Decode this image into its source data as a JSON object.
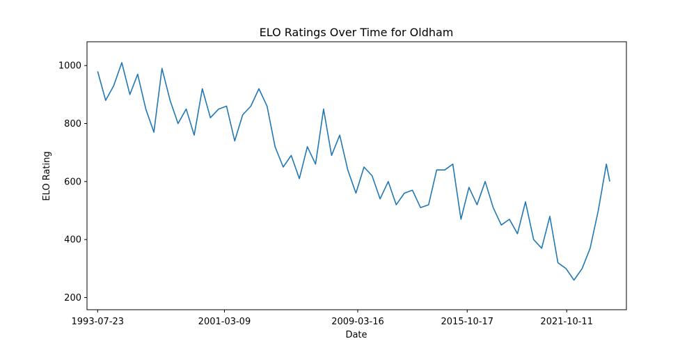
{
  "chart_data": {
    "type": "line",
    "title": "ELO Ratings Over Time for Oldham",
    "xlabel": "Date",
    "ylabel": "ELO Rating",
    "x_ticks": [
      "1993-07-23",
      "2001-03-09",
      "2009-03-16",
      "2015-10-17",
      "2021-10-11"
    ],
    "y_ticks": [
      200,
      400,
      600,
      800,
      1000
    ],
    "xlim": [
      "1992-12-01",
      "2025-05-15"
    ],
    "ylim": [
      158,
      1082
    ],
    "grid": false,
    "legend": "none",
    "series": [
      {
        "color": "#1f77b4",
        "x": [
          "1993-07-23",
          "1994-01-15",
          "1994-07-10",
          "1995-01-05",
          "1995-07-01",
          "1995-12-20",
          "1996-06-15",
          "1996-12-10",
          "1997-06-05",
          "1997-12-01",
          "1998-05-25",
          "1998-11-20",
          "1999-05-15",
          "1999-11-10",
          "2000-05-05",
          "2000-11-01",
          "2001-04-25",
          "2001-10-20",
          "2002-04-15",
          "2002-10-10",
          "2003-04-05",
          "2003-10-01",
          "2004-03-25",
          "2004-09-20",
          "2005-03-15",
          "2005-09-10",
          "2006-03-05",
          "2006-09-01",
          "2007-02-25",
          "2007-08-20",
          "2008-02-15",
          "2008-08-10",
          "2009-02-05",
          "2009-08-01",
          "2010-01-25",
          "2010-07-20",
          "2011-01-15",
          "2011-07-10",
          "2012-01-05",
          "2012-07-01",
          "2012-12-25",
          "2013-06-20",
          "2013-12-15",
          "2014-06-10",
          "2014-12-05",
          "2015-06-01",
          "2015-11-25",
          "2016-05-20",
          "2016-11-15",
          "2017-05-10",
          "2017-11-05",
          "2018-05-01",
          "2018-10-25",
          "2019-04-20",
          "2019-10-15",
          "2020-04-10",
          "2020-10-05",
          "2021-04-01",
          "2021-09-25",
          "2022-03-20",
          "2022-09-15",
          "2023-03-10",
          "2023-09-05",
          "2024-03-01",
          "2024-05-15"
        ],
        "y": [
          980,
          880,
          930,
          1010,
          900,
          970,
          850,
          770,
          990,
          880,
          800,
          850,
          760,
          920,
          820,
          850,
          860,
          740,
          830,
          860,
          920,
          860,
          720,
          650,
          690,
          610,
          720,
          660,
          850,
          690,
          760,
          640,
          560,
          650,
          620,
          540,
          600,
          520,
          560,
          570,
          510,
          520,
          640,
          640,
          660,
          470,
          580,
          520,
          600,
          510,
          450,
          470,
          420,
          530,
          400,
          370,
          480,
          320,
          300,
          260,
          300,
          370,
          500,
          660,
          600
        ]
      }
    ]
  }
}
